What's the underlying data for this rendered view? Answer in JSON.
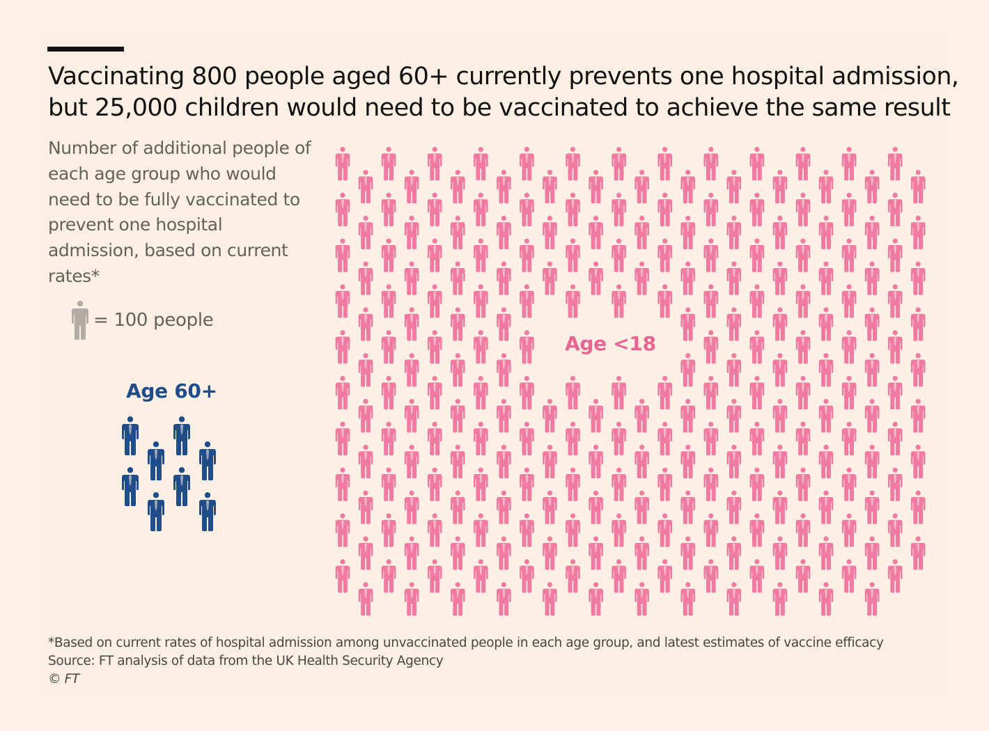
{
  "title": "Vaccinating 800 people aged 60+ currently prevents one hospital admission, but 25,000 children would need to be vaccinated to achieve the same result",
  "subtitle": "Number of additional people of each age group who would need to be fully vaccinated to prevent one hospital admission, based on current rates*",
  "legend": {
    "label": "= 100 people",
    "icon": "person-icon",
    "color": "#b3aca6"
  },
  "footnote": {
    "note": "*Based on current rates of hospital admission among unvaccinated people in each age group, and latest estimates of vaccine efficacy",
    "source": "Source: FT analysis of data from the UK Health Security Agency",
    "copyright": "© FT"
  },
  "chart_data": {
    "type": "isotype",
    "unit": 100,
    "series": [
      {
        "name": "Age 60+",
        "value": 800,
        "icons": 8,
        "color": "#1f4d89"
      },
      {
        "name": "Age <18",
        "value": 25000,
        "icons": 250,
        "color": "#f07aa2"
      }
    ]
  },
  "colors": {
    "background": "#fdf1e6",
    "age60": "#1f4d89",
    "age18": "#f07aa2",
    "age18_label": "#e86593",
    "muted": "#66605b"
  }
}
